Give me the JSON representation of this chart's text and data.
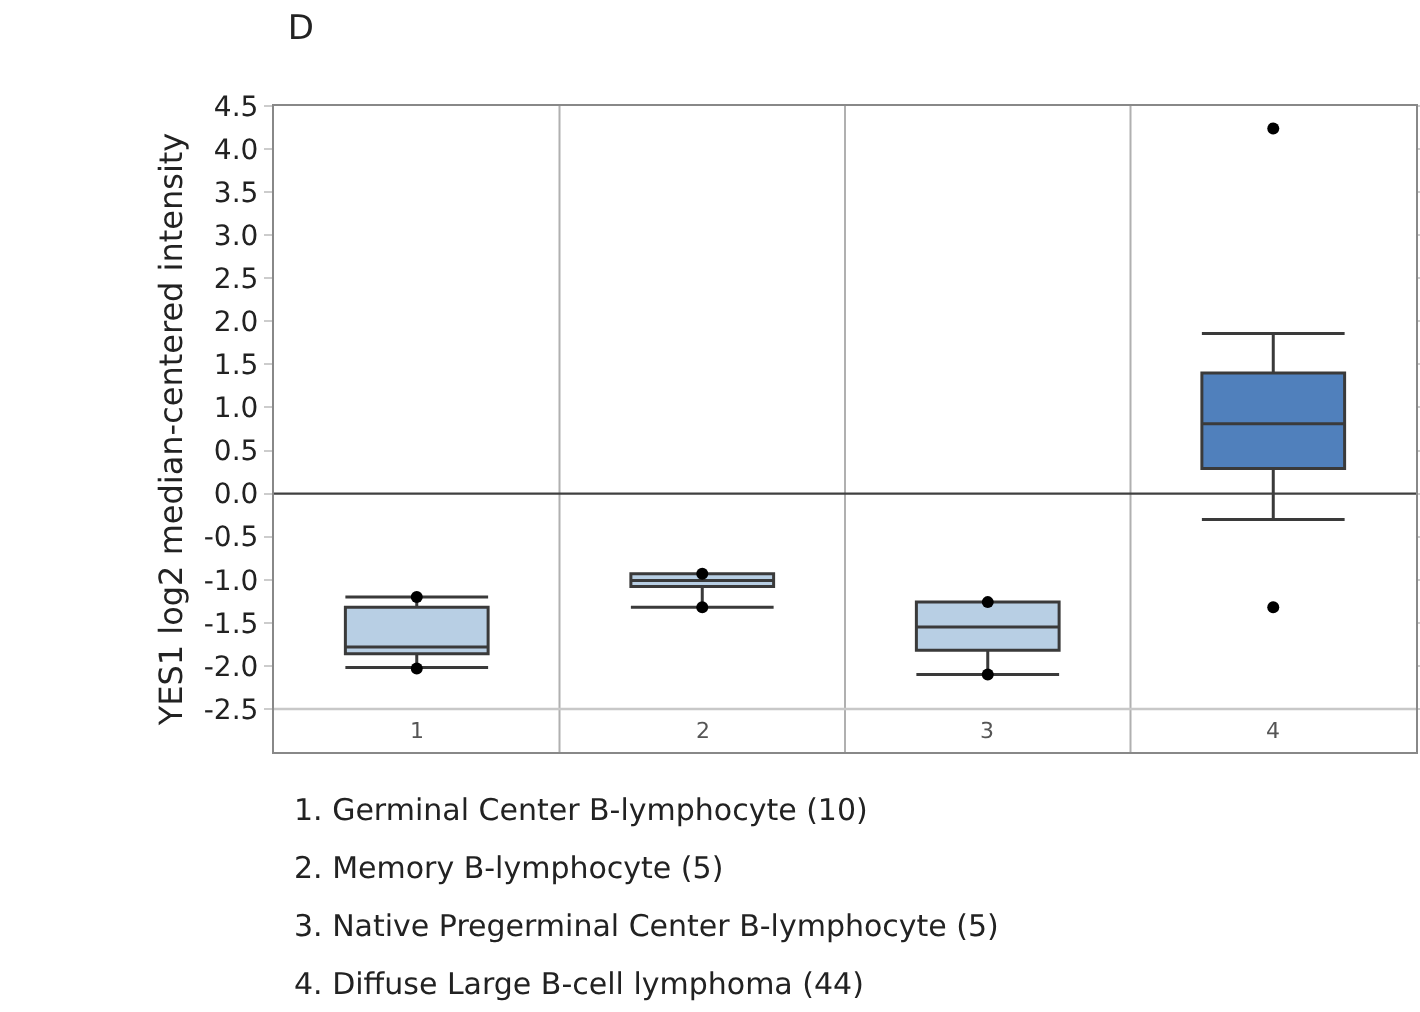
{
  "chart_data": {
    "type": "box",
    "title": "D",
    "ylabel": "YES1 log2 median-centered intensity",
    "categories": [
      "1",
      "2",
      "3",
      "4"
    ],
    "colors": [
      "#b8cfe4",
      "#b8cfe4",
      "#b8cfe4",
      "#5080bc"
    ],
    "boxes": [
      {
        "low": -2.02,
        "q1": -1.86,
        "median": -1.78,
        "q3": -1.32,
        "high": -1.2,
        "outliers": [
          -1.2,
          -2.03
        ]
      },
      {
        "low": -1.32,
        "q1": -1.08,
        "median": -1.01,
        "q3": -0.93,
        "high": -0.93,
        "outliers": [
          -0.93,
          -1.32
        ]
      },
      {
        "low": -2.1,
        "q1": -1.82,
        "median": -1.55,
        "q3": -1.26,
        "high": -1.26,
        "outliers": [
          -1.26,
          -2.1
        ]
      },
      {
        "low": -0.3,
        "q1": 0.29,
        "median": 0.81,
        "q3": 1.4,
        "high": 1.86,
        "outliers": [
          4.24,
          -1.32
        ]
      }
    ],
    "ylim": [
      -3,
      4.5
    ],
    "yticks": [
      {
        "value": 4.5,
        "label": "4.5"
      },
      {
        "value": 4,
        "label": "4.0"
      },
      {
        "value": 3.5,
        "label": "3.5"
      },
      {
        "value": 3,
        "label": "3.0"
      },
      {
        "value": 2.5,
        "label": "2.5"
      },
      {
        "value": 2,
        "label": "2.0"
      },
      {
        "value": 1.5,
        "label": "1.5"
      },
      {
        "value": 1,
        "label": "1.0"
      },
      {
        "value": 0.5,
        "label": "0.5"
      },
      {
        "value": 0,
        "label": "0.0"
      },
      {
        "value": -0.5,
        "label": "-0.5"
      },
      {
        "value": -1,
        "label": "-1.0"
      },
      {
        "value": -1.5,
        "label": "-1.5"
      },
      {
        "value": -2,
        "label": "-2.0"
      },
      {
        "value": -2.5,
        "label": "-2.5"
      }
    ],
    "grid": "x",
    "ref_lines": [
      {
        "axis": "y",
        "value": 0,
        "color": "#404040"
      },
      {
        "axis": "y",
        "value": -2.5,
        "color": "#c8c8c8"
      }
    ],
    "annotations": [
      "1. Germinal Center B-lymphocyte (10)",
      "2. Memory B-lymphocyte (5)",
      "3. Native Pregerminal Center B-lymphocyte (5)",
      "4. Diffuse Large B-cell lymphoma (44)"
    ]
  }
}
